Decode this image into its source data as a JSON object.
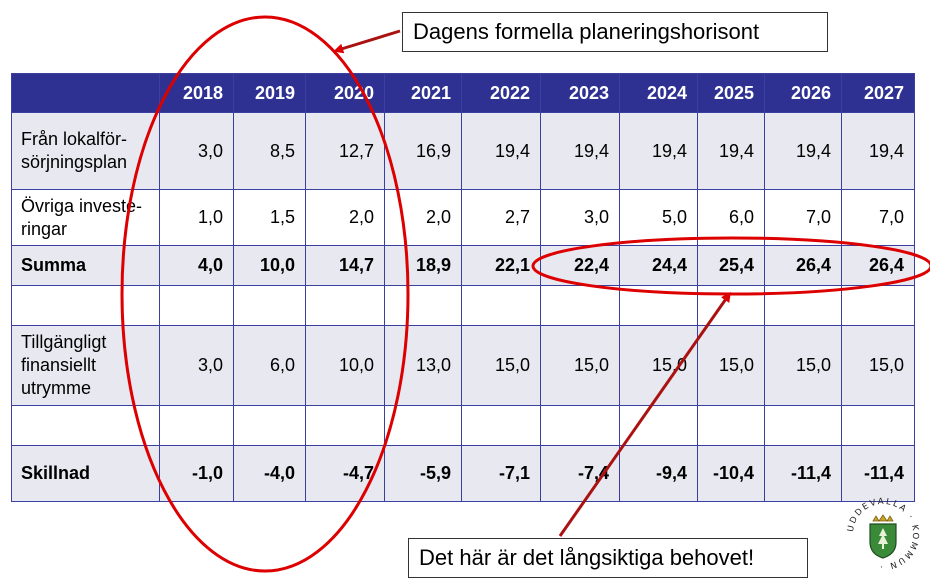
{
  "header": {
    "label": "",
    "years": [
      "2018",
      "2019",
      "2020",
      "2021",
      "2022",
      "2023",
      "2024",
      "2025",
      "2026",
      "2027"
    ]
  },
  "rows": [
    {
      "label": "Från lokalför-sörjningsplan",
      "values": [
        "3,0",
        "8,5",
        "12,7",
        "16,9",
        "19,4",
        "19,4",
        "19,4",
        "19,4",
        "19,4",
        "19,4"
      ]
    },
    {
      "label": "Övriga investe-ringar",
      "values": [
        "1,0",
        "1,5",
        "2,0",
        "2,0",
        "2,7",
        "3,0",
        "5,0",
        "6,0",
        "7,0",
        "7,0"
      ]
    },
    {
      "label": "Summa",
      "values": [
        "4,0",
        "10,0",
        "14,7",
        "18,9",
        "22,1",
        "22,4",
        "24,4",
        "25,4",
        "26,4",
        "26,4"
      ]
    },
    {
      "label": "",
      "values": [
        "",
        "",
        "",
        "",
        "",
        "",
        "",
        "",
        "",
        ""
      ]
    },
    {
      "label": "Tillgängligt finansiellt utrymme",
      "values": [
        "3,0",
        "6,0",
        "10,0",
        "13,0",
        "15,0",
        "15,0",
        "15,0",
        "15,0",
        "15,0",
        "15,0"
      ]
    },
    {
      "label": "",
      "values": [
        "",
        "",
        "",
        "",
        "",
        "",
        "",
        "",
        "",
        ""
      ]
    },
    {
      "label": "Skillnad",
      "values": [
        "-1,0",
        "-4,0",
        "-4,7",
        "-5,9",
        "-7,1",
        "-7,4",
        "-9,4",
        "-10,4",
        "-11,4",
        "-11,4"
      ]
    }
  ],
  "callouts": {
    "top": "Dagens formella planeringshorisont",
    "bottom": "Det här är det långsiktiga behovet!"
  },
  "logo": {
    "text": "UDDEVALLA · KOMMUN ·"
  },
  "colors": {
    "header_bg": "#2e3192",
    "annotation_red": "#dd0000",
    "shade_row": "#e8e8f0"
  }
}
